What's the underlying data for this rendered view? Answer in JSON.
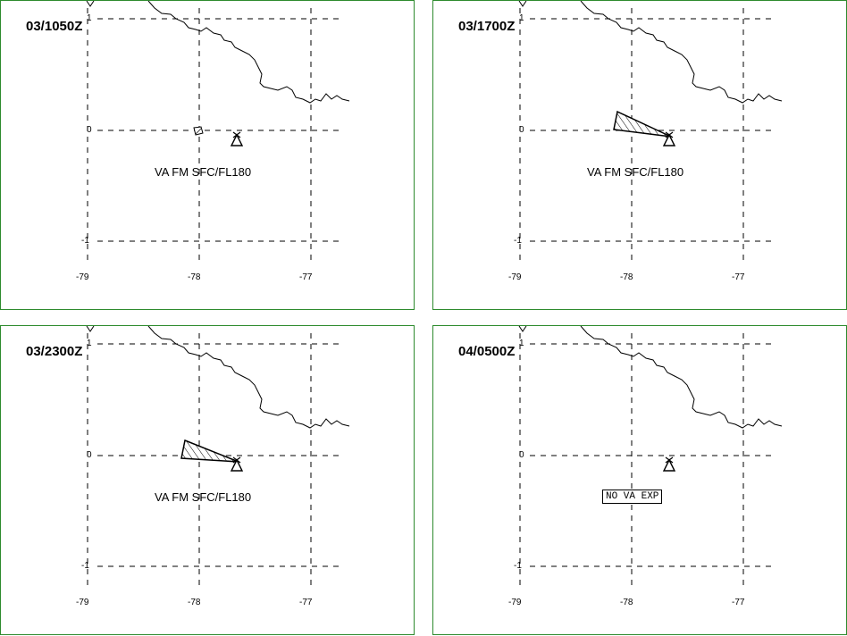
{
  "panels": [
    {
      "time": "03/1050Z",
      "label": "VA FM SFC/FL180",
      "boxed": false,
      "ash": "tiny"
    },
    {
      "time": "03/1700Z",
      "label": "VA FM SFC/FL180",
      "boxed": false,
      "ash": "fan1"
    },
    {
      "time": "03/2300Z",
      "label": "VA FM SFC/FL180",
      "boxed": false,
      "ash": "fan2"
    },
    {
      "time": "04/0500Z",
      "label": "NO VA EXP",
      "boxed": true,
      "ash": "none"
    }
  ],
  "axes": {
    "x_ticks": [
      "-79",
      "-78",
      "-77"
    ],
    "y_ticks": [
      "1",
      "0",
      "-1"
    ]
  },
  "colors": {
    "border": "#2e8b2e",
    "line": "#000000"
  },
  "icons": {
    "volcano": "volcano-triangle-icon"
  }
}
